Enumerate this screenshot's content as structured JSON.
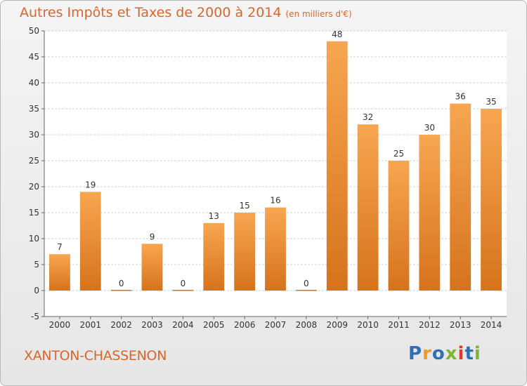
{
  "title": {
    "main": "Autres Impôts et Taxes de 2000 à 2014",
    "unit": "(en milliers d'€)"
  },
  "commune": "XANTON-CHASSENON",
  "logo": {
    "letters": [
      {
        "char": "P",
        "color": "#2f6fb6"
      },
      {
        "char": "r",
        "color": "#f19a22"
      },
      {
        "char": "o",
        "color": "#2f6fb6"
      },
      {
        "char": "x",
        "color": "#7cb82f"
      },
      {
        "char": "i",
        "color": "#e23a2a"
      },
      {
        "char": "t",
        "color": "#2f6fb6"
      },
      {
        "char": "i",
        "color": "#7cb82f"
      }
    ]
  },
  "colors": {
    "bar_top": "#f7a650",
    "bar_bottom": "#d6731c",
    "title": "#d9662c"
  },
  "chart_data": {
    "type": "bar",
    "title": "Autres Impôts et Taxes de 2000 à 2014",
    "subtitle": "(en milliers d'€)",
    "xlabel": "",
    "ylabel": "",
    "categories": [
      "2000",
      "2001",
      "2002",
      "2003",
      "2004",
      "2005",
      "2006",
      "2007",
      "2008",
      "2009",
      "2010",
      "2011",
      "2012",
      "2013",
      "2014"
    ],
    "values": [
      7,
      19,
      0,
      9,
      0,
      13,
      15,
      16,
      0,
      48,
      32,
      25,
      30,
      36,
      35
    ],
    "ylim": [
      -5,
      50
    ],
    "yticks": [
      -5,
      0,
      5,
      10,
      15,
      20,
      25,
      30,
      35,
      40,
      45,
      50
    ],
    "grid": true,
    "data_labels": true
  }
}
